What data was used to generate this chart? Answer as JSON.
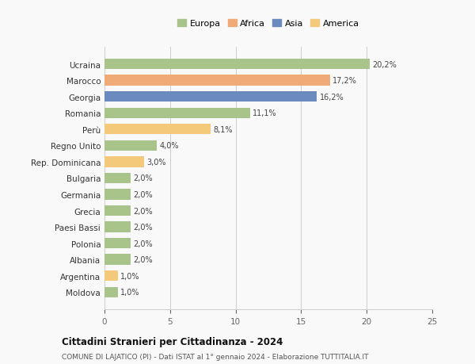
{
  "categories": [
    "Moldova",
    "Argentina",
    "Albania",
    "Polonia",
    "Paesi Bassi",
    "Grecia",
    "Germania",
    "Bulgaria",
    "Rep. Dominicana",
    "Regno Unito",
    "Perù",
    "Romania",
    "Georgia",
    "Marocco",
    "Ucraina"
  ],
  "values": [
    1.0,
    1.0,
    2.0,
    2.0,
    2.0,
    2.0,
    2.0,
    2.0,
    3.0,
    4.0,
    8.1,
    11.1,
    16.2,
    17.2,
    20.2
  ],
  "labels": [
    "1,0%",
    "1,0%",
    "2,0%",
    "2,0%",
    "2,0%",
    "2,0%",
    "2,0%",
    "2,0%",
    "3,0%",
    "4,0%",
    "8,1%",
    "11,1%",
    "16,2%",
    "17,2%",
    "20,2%"
  ],
  "colors": [
    "#a8c48a",
    "#f5c97a",
    "#a8c48a",
    "#a8c48a",
    "#a8c48a",
    "#a8c48a",
    "#a8c48a",
    "#a8c48a",
    "#f5c97a",
    "#a8c48a",
    "#f5c97a",
    "#a8c48a",
    "#6b8bbf",
    "#f0aa78",
    "#a8c48a"
  ],
  "legend_labels": [
    "Europa",
    "Africa",
    "Asia",
    "America"
  ],
  "legend_colors": [
    "#a8c48a",
    "#f0aa78",
    "#6b8bbf",
    "#f5c97a"
  ],
  "xlim": [
    0,
    25
  ],
  "xticks": [
    0,
    5,
    10,
    15,
    20,
    25
  ],
  "title": "Cittadini Stranieri per Cittadinanza - 2024",
  "subtitle": "COMUNE DI LAJATICO (PI) - Dati ISTAT al 1° gennaio 2024 - Elaborazione TUTTITALIA.IT",
  "bg_color": "#f9f9f9",
  "bar_height": 0.65
}
